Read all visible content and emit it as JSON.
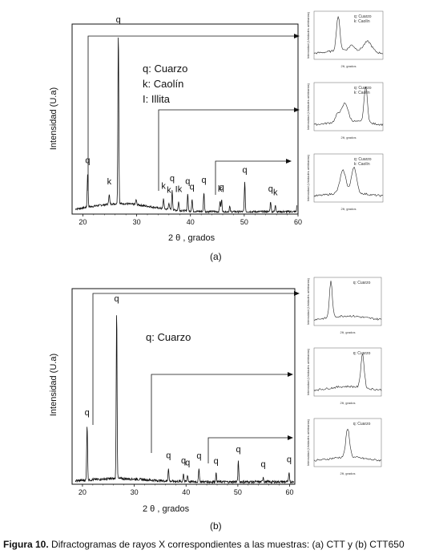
{
  "caption": {
    "label": "Figura 10.",
    "text": " Difractogramas de rayos X correspondientes a las muestras: (a) CTT y (b) CTT650"
  },
  "chart_data": [
    {
      "type": "line",
      "panel_label": "(a)",
      "xlabel": "2 θ , grados",
      "ylabel": "Intensidad (U.a)",
      "xlim": [
        18,
        60
      ],
      "x_ticks": [
        "20",
        "30",
        "40",
        "50",
        "60"
      ],
      "legend": [
        "q: Cuarzo",
        "k: Caolín",
        "I:  Illita"
      ],
      "peaks": [
        {
          "x": 20.9,
          "h": 0.2,
          "label": "q"
        },
        {
          "x": 24.9,
          "h": 0.06,
          "label": "k"
        },
        {
          "x": 26.6,
          "h": 1.0,
          "label": "q"
        },
        {
          "x": 29.9,
          "h": 0.03,
          "label": ""
        },
        {
          "x": 35.0,
          "h": 0.06,
          "label": "k"
        },
        {
          "x": 36.0,
          "h": 0.04,
          "label": "k"
        },
        {
          "x": 36.6,
          "h": 0.11,
          "label": "q"
        },
        {
          "x": 37.8,
          "h": 0.05,
          "label": "Ik"
        },
        {
          "x": 39.5,
          "h": 0.1,
          "label": "q"
        },
        {
          "x": 40.3,
          "h": 0.07,
          "label": "q"
        },
        {
          "x": 42.5,
          "h": 0.11,
          "label": "q"
        },
        {
          "x": 45.5,
          "h": 0.06,
          "label": "k"
        },
        {
          "x": 45.8,
          "h": 0.07,
          "label": "q"
        },
        {
          "x": 47.3,
          "h": 0.03,
          "label": ""
        },
        {
          "x": 50.1,
          "h": 0.17,
          "label": "q"
        },
        {
          "x": 54.9,
          "h": 0.06,
          "label": "q"
        },
        {
          "x": 55.8,
          "h": 0.04,
          "label": "k"
        },
        {
          "x": 59.9,
          "h": 0.13,
          "label": ""
        }
      ],
      "insets": [
        {
          "legend": [
            "q: Cuarzo",
            "k: Caolín"
          ],
          "xlabel": "2θ, grados",
          "ylabel": "Intensidad (Unidades arbitrarias)"
        },
        {
          "legend": [
            "q: Cuarzo",
            "k: Caolín"
          ],
          "xlabel": "2θ, grados",
          "ylabel": "Intensidad (Unidades arbitrarias)"
        },
        {
          "legend": [
            "q: Cuarzo",
            "k: Caolín"
          ],
          "xlabel": "2θ, grados",
          "ylabel": "Intensidad (Unidades arbitrarias)"
        }
      ]
    },
    {
      "type": "line",
      "panel_label": "(b)",
      "xlabel": "2 θ , grados",
      "ylabel": "Intensidad (U.a)",
      "xlim": [
        18,
        61
      ],
      "x_ticks": [
        "20",
        "30",
        "40",
        "50",
        "60"
      ],
      "legend": [
        "q: Cuarzo"
      ],
      "peaks": [
        {
          "x": 20.9,
          "h": 0.33,
          "label": "q"
        },
        {
          "x": 26.6,
          "h": 1.0,
          "label": "q"
        },
        {
          "x": 36.6,
          "h": 0.08,
          "label": "q"
        },
        {
          "x": 39.5,
          "h": 0.05,
          "label": "q"
        },
        {
          "x": 40.3,
          "h": 0.04,
          "label": "q"
        },
        {
          "x": 42.5,
          "h": 0.08,
          "label": "q"
        },
        {
          "x": 45.8,
          "h": 0.05,
          "label": "q"
        },
        {
          "x": 50.1,
          "h": 0.12,
          "label": "q"
        },
        {
          "x": 54.9,
          "h": 0.03,
          "label": "q"
        },
        {
          "x": 59.9,
          "h": 0.06,
          "label": "q"
        }
      ],
      "insets": [
        {
          "legend": [
            "q: Cuarzo"
          ],
          "xlabel": "2θ, grados",
          "ylabel": "Intensidad (Unidades arbitrarias)"
        },
        {
          "legend": [
            "q: Cuarzo"
          ],
          "xlabel": "2θ, grados",
          "ylabel": "Intensidad (Unidades arbitrarias)"
        },
        {
          "legend": [
            "q: Cuarzo"
          ],
          "xlabel": "2θ, grados",
          "ylabel": "Intensidad (Unidades arbitrarias)"
        }
      ]
    }
  ]
}
